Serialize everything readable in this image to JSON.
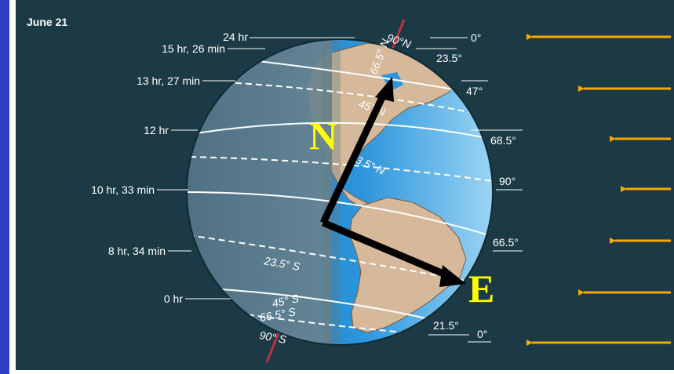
{
  "date_label": "June 21",
  "daylength_labels": [
    "24 hr",
    "15 hr, 26 min",
    "13 hr, 27 min",
    "12 hr",
    "10 hr, 33 min",
    "8 hr, 34 min",
    "0 hr"
  ],
  "angle_labels": [
    "0°",
    "23.5°",
    "47°",
    "68.5°",
    "90°",
    "66.5°",
    "21.5°",
    "0°"
  ],
  "latitude_labels": {
    "north_pole": "90°N",
    "arctic": "66.5° N",
    "mid_north": "45° N",
    "tropic_north": "23.5° N",
    "tropic_south": "23.5° S",
    "mid_south": "45° S",
    "antarctic": "66.5° S",
    "south_pole": "90° S"
  },
  "direction_labels": {
    "north": "N",
    "east": "E"
  },
  "colors": {
    "background": "#1c3a45",
    "arrow": "#f6a800",
    "vector": "#000000",
    "vector_label": "#ffff00",
    "axis": "#c0303c"
  },
  "sun_rays_count": 7
}
